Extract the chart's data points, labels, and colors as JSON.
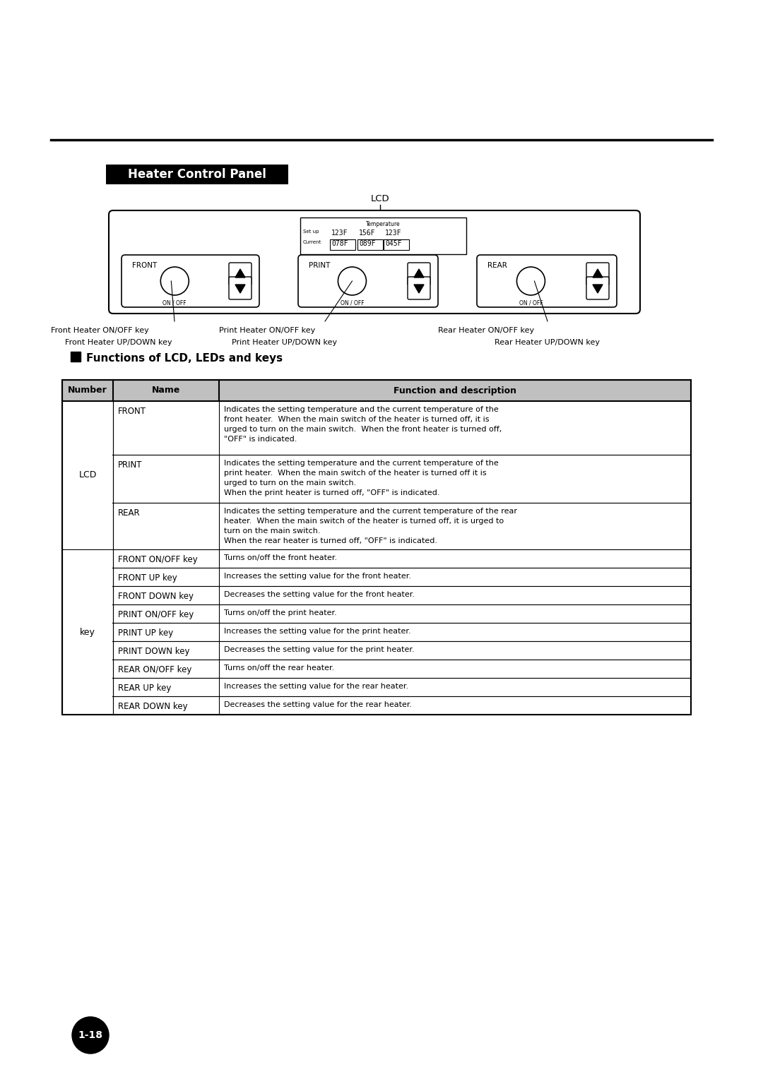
{
  "title": "Heater Control Panel",
  "section_header": "Functions of LCD, LEDs and keys",
  "table_headers": [
    "Number",
    "Name",
    "Function and description"
  ],
  "table_rows": [
    [
      "LCD",
      "FRONT",
      "Indicates the setting temperature and the current temperature of the\nfront heater.  When the main switch of the heater is turned off, it is\nurged to turn on the main switch.  When the front heater is turned off,\n\"OFF\" is indicated."
    ],
    [
      "LCD",
      "PRINT",
      "Indicates the setting temperature and the current temperature of the\nprint heater.  When the main switch of the heater is turned off it is\nurged to turn on the main switch.\nWhen the print heater is turned off, \"OFF\" is indicated."
    ],
    [
      "LCD",
      "REAR",
      "Indicates the setting temperature and the current temperature of the rear\nheater.  When the main switch of the heater is turned off, it is urged to\nturn on the main switch.\nWhen the rear heater is turned off, \"OFF\" is indicated."
    ],
    [
      "key",
      "FRONT ON/OFF key",
      "Turns on/off the front heater."
    ],
    [
      "key",
      "FRONT UP key",
      "Increases the setting value for the front heater."
    ],
    [
      "key",
      "FRONT DOWN key",
      "Decreases the setting value for the front heater."
    ],
    [
      "key",
      "PRINT ON/OFF key",
      "Turns on/off the print heater."
    ],
    [
      "key",
      "PRINT UP key",
      "Increases the setting value for the print heater."
    ],
    [
      "key",
      "PRINT DOWN key",
      "Decreases the setting value for the print heater."
    ],
    [
      "key",
      "REAR ON/OFF key",
      "Turns on/off the rear heater."
    ],
    [
      "key",
      "REAR UP key",
      "Increases the setting value for the rear heater."
    ],
    [
      "key",
      "REAR DOWN key",
      "Decreases the setting value for the rear heater."
    ]
  ],
  "lcd_setup": [
    "123F",
    "156F",
    "123F"
  ],
  "lcd_current": [
    "078F",
    "089F",
    "045F"
  ],
  "panel_labels": [
    "FRONT",
    "PRINT",
    "REAR"
  ],
  "annotations": [
    "Front Heater ON/OFF key",
    "Print Heater ON/OFF key",
    "Rear Heater ON/OFF key",
    "Front Heater UP/DOWN key",
    "Print Heater UP/DOWN key",
    "Rear Heater UP/DOWN key"
  ],
  "page_number": "1-18",
  "background_color": "#ffffff",
  "text_color": "#000000"
}
